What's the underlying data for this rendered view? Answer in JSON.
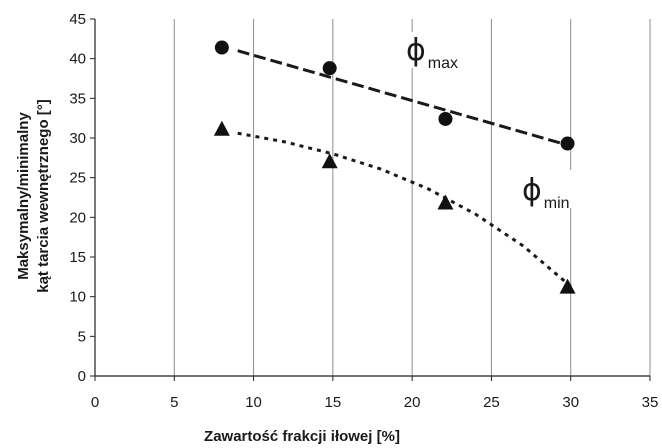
{
  "chart_data": {
    "type": "scatter",
    "xlabel": "Zawartość frakcji iłowej [%]",
    "ylabel_lines": [
      "Maksymalny/minimalny",
      "kąt tarcia wewnętrznego [°]"
    ],
    "xlim": [
      0,
      35
    ],
    "ylim": [
      0,
      45
    ],
    "x_ticks": [
      0,
      5,
      10,
      15,
      20,
      25,
      30,
      35
    ],
    "y_ticks": [
      0,
      5,
      10,
      15,
      20,
      25,
      30,
      35,
      40,
      45
    ],
    "grid": {
      "vertical": true,
      "horizontal": false
    },
    "series": [
      {
        "marker": "circle",
        "label_symbol": "ϕ",
        "label_sub": "max",
        "x": [
          8,
          14.8,
          22.1,
          29.8
        ],
        "y": [
          41.4,
          38.8,
          32.4,
          29.3
        ],
        "trend": {
          "style": "dashed",
          "x": [
            9,
            30
          ],
          "y": [
            41,
            29
          ]
        }
      },
      {
        "marker": "triangle",
        "label_symbol": "ϕ",
        "label_sub": "min",
        "x": [
          8,
          14.8,
          22.1,
          29.8
        ],
        "y": [
          31,
          26.9,
          21.7,
          11.1
        ],
        "trend": {
          "style": "dotted",
          "x": [
            9,
            12,
            15,
            18,
            21,
            24,
            27,
            30
          ],
          "y": [
            30.6,
            29.5,
            28,
            26.1,
            23.6,
            20.4,
            16.4,
            11.3
          ]
        }
      }
    ],
    "colors": {
      "marker": "#111111",
      "axis": "#222222",
      "grid": "#8c8c8c",
      "trend": "#1a1a1a"
    }
  }
}
